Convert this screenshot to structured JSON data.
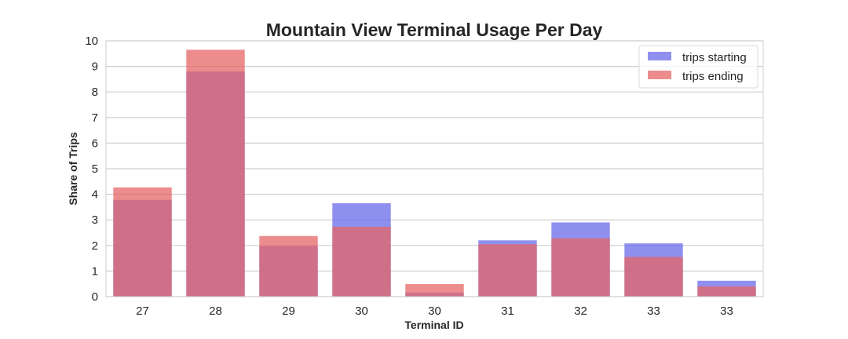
{
  "chart_data": {
    "type": "bar",
    "title": "Mountain View Terminal Usage Per Day",
    "xlabel": "Terminal ID",
    "ylabel": "Share of Trips",
    "ylim": [
      0,
      10
    ],
    "yticks": [
      "0",
      "1",
      "2",
      "3",
      "4",
      "5",
      "6",
      "7",
      "8",
      "9",
      "10"
    ],
    "categories": [
      "27",
      "28",
      "29",
      "30",
      "30",
      "31",
      "32",
      "33",
      "33"
    ],
    "grid": true,
    "legend_position": "top-right",
    "series": [
      {
        "name": "trips starting",
        "color": "#6a6aeb",
        "opacity": 0.75,
        "values": [
          3.78,
          8.8,
          1.98,
          3.65,
          0.16,
          2.2,
          2.9,
          2.08,
          0.62
        ]
      },
      {
        "name": "trips ending",
        "color": "#e66565",
        "opacity": 0.75,
        "values": [
          4.27,
          9.65,
          2.37,
          2.73,
          0.49,
          2.05,
          2.28,
          1.55,
          0.4
        ]
      }
    ]
  }
}
